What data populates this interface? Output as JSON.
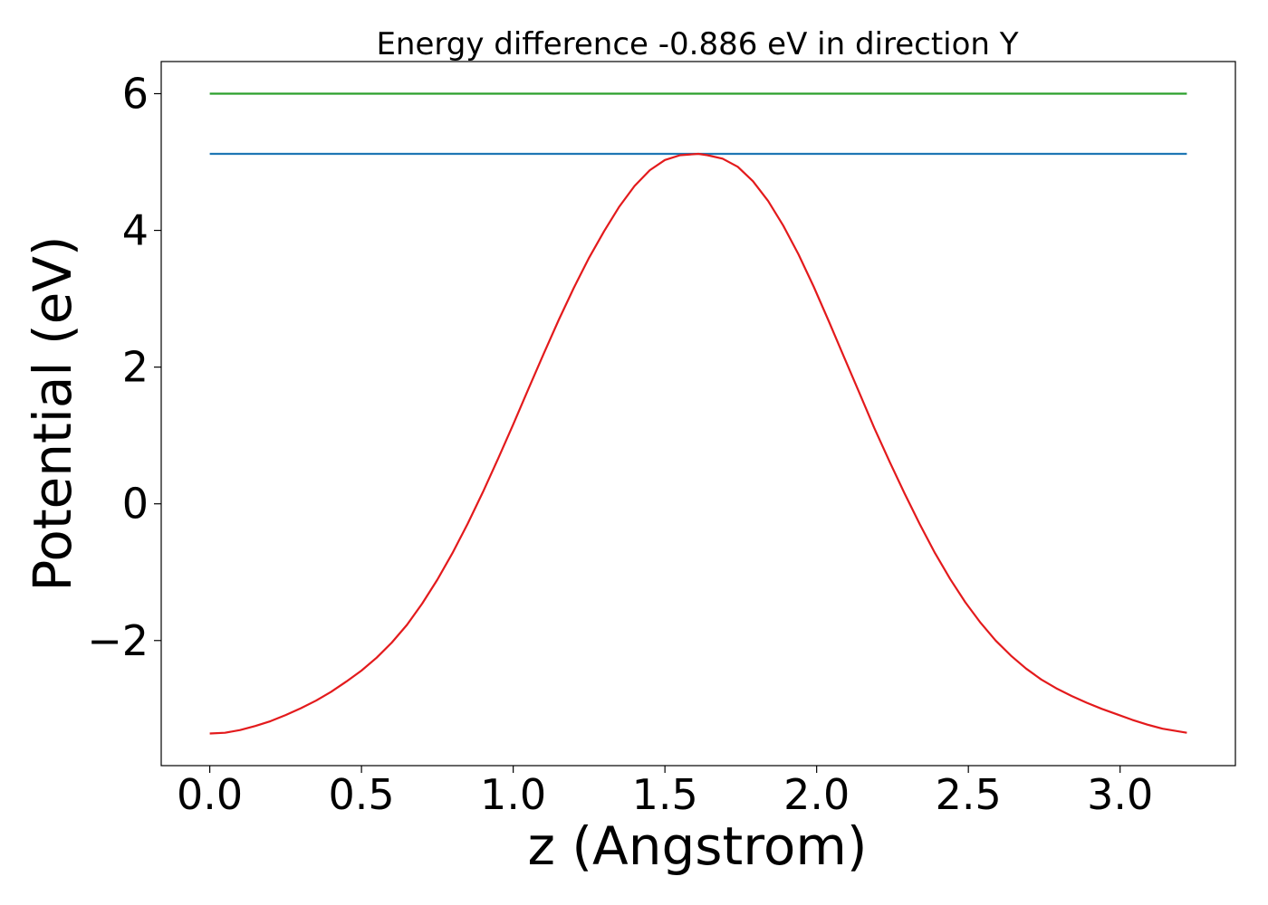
{
  "chart_data": {
    "type": "line",
    "title": "Energy difference -0.886 eV in direction Y",
    "xlabel": "z (Angstrom)",
    "ylabel": "Potential (eV)",
    "xlim": [
      -0.16,
      3.38
    ],
    "ylim": [
      -3.83,
      6.47
    ],
    "xticks": [
      0.0,
      0.5,
      1.0,
      1.5,
      2.0,
      2.5,
      3.0
    ],
    "xtick_labels": [
      "0.0",
      "0.5",
      "1.0",
      "1.5",
      "2.0",
      "2.5",
      "3.0"
    ],
    "yticks": [
      -2,
      0,
      2,
      4,
      6
    ],
    "ytick_labels": [
      "−2",
      "0",
      "2",
      "4",
      "6"
    ],
    "grid": false,
    "series": [
      {
        "color": "#2ca02c",
        "x": [
          0.0,
          3.22
        ],
        "y": [
          6.0,
          6.0
        ]
      },
      {
        "color": "#1f77b4",
        "x": [
          0.0,
          3.22
        ],
        "y": [
          5.12,
          5.12
        ]
      },
      {
        "color": "#e31a1c",
        "x": [
          0.0,
          0.05,
          0.1,
          0.15,
          0.2,
          0.25,
          0.3,
          0.35,
          0.4,
          0.45,
          0.5,
          0.55,
          0.6,
          0.65,
          0.7,
          0.75,
          0.8,
          0.85,
          0.9,
          0.95,
          1.0,
          1.05,
          1.1,
          1.15,
          1.2,
          1.25,
          1.3,
          1.35,
          1.4,
          1.45,
          1.5,
          1.55,
          1.61,
          1.64,
          1.69,
          1.74,
          1.79,
          1.84,
          1.89,
          1.94,
          1.99,
          2.04,
          2.09,
          2.14,
          2.19,
          2.24,
          2.29,
          2.34,
          2.39,
          2.44,
          2.49,
          2.54,
          2.59,
          2.64,
          2.69,
          2.74,
          2.79,
          2.84,
          2.89,
          2.94,
          2.99,
          3.04,
          3.09,
          3.14,
          3.22
        ],
        "y": [
          -3.36,
          -3.35,
          -3.31,
          -3.25,
          -3.18,
          -3.09,
          -2.99,
          -2.88,
          -2.75,
          -2.6,
          -2.44,
          -2.25,
          -2.03,
          -1.77,
          -1.46,
          -1.11,
          -0.72,
          -0.29,
          0.17,
          0.66,
          1.16,
          1.68,
          2.19,
          2.69,
          3.16,
          3.6,
          3.99,
          4.35,
          4.65,
          4.88,
          5.03,
          5.1,
          5.12,
          5.1,
          5.05,
          4.93,
          4.72,
          4.43,
          4.07,
          3.65,
          3.18,
          2.67,
          2.15,
          1.63,
          1.11,
          0.62,
          0.15,
          -0.3,
          -0.72,
          -1.1,
          -1.44,
          -1.74,
          -2.0,
          -2.22,
          -2.41,
          -2.57,
          -2.7,
          -2.81,
          -2.91,
          -3.0,
          -3.08,
          -3.16,
          -3.23,
          -3.29,
          -3.35
        ]
      }
    ]
  }
}
